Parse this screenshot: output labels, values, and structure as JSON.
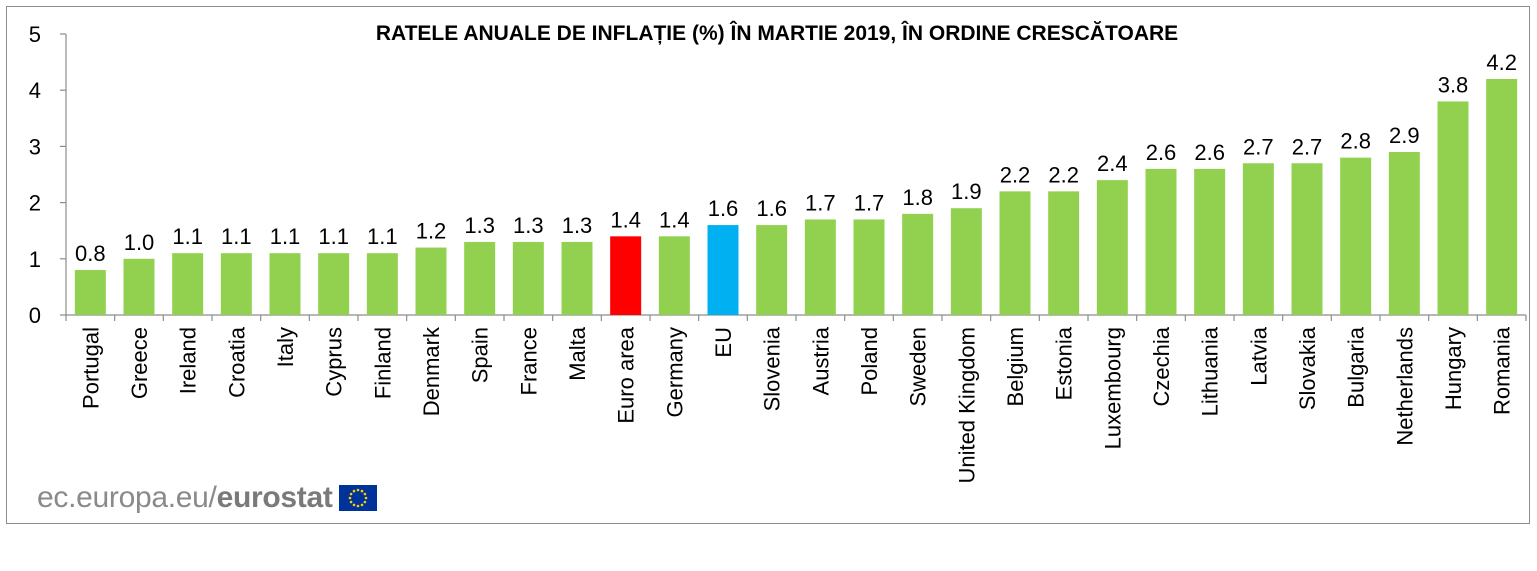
{
  "chart_data": {
    "type": "bar",
    "title": "RATELE ANUALE DE INFLAȚIE (%) ÎN MARTIE 2019, ÎN ORDINE CRESCĂTOARE",
    "xlabel": "",
    "ylabel": "",
    "ylim": [
      0,
      5
    ],
    "yticks": [
      "0",
      "1",
      "2",
      "3",
      "4",
      "5"
    ],
    "grid": false,
    "legend": "none",
    "categories": [
      "Portugal",
      "Greece",
      "Ireland",
      "Croatia",
      "Italy",
      "Cyprus",
      "Finland",
      "Denmark",
      "Spain",
      "France",
      "Malta",
      "Euro area",
      "Germany",
      "EU",
      "Slovenia",
      "Austria",
      "Poland",
      "Sweden",
      "United Kingdom",
      "Belgium",
      "Estonia",
      "Luxembourg",
      "Czechia",
      "Lithuania",
      "Latvia",
      "Slovakia",
      "Bulgaria",
      "Netherlands",
      "Hungary",
      "Romania"
    ],
    "values": [
      0.8,
      1.0,
      1.1,
      1.1,
      1.1,
      1.1,
      1.1,
      1.2,
      1.3,
      1.3,
      1.3,
      1.4,
      1.4,
      1.6,
      1.6,
      1.7,
      1.7,
      1.8,
      1.9,
      2.2,
      2.2,
      2.4,
      2.6,
      2.6,
      2.7,
      2.7,
      2.8,
      2.9,
      3.8,
      4.2
    ],
    "value_labels": [
      "0.8",
      "1.0",
      "1.1",
      "1.1",
      "1.1",
      "1.1",
      "1.1",
      "1.2",
      "1.3",
      "1.3",
      "1.3",
      "1.4",
      "1.4",
      "1.6",
      "1.6",
      "1.7",
      "1.7",
      "1.8",
      "1.9",
      "2.2",
      "2.2",
      "2.4",
      "2.6",
      "2.6",
      "2.7",
      "2.7",
      "2.8",
      "2.9",
      "3.8",
      "4.2"
    ],
    "colors": {
      "default": "#92d050",
      "Euro area": "#ff0000",
      "EU": "#00b0f0"
    }
  },
  "footer": {
    "site": "ec.europa.eu/",
    "brand": "eurostat",
    "flag_icon": "eu-flag-icon",
    "flag_color": "#003399",
    "star_color": "#ffcc00"
  }
}
